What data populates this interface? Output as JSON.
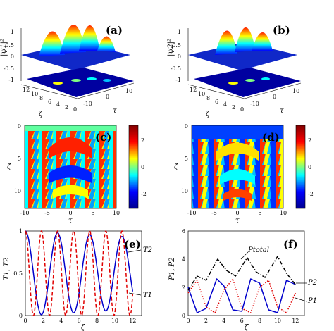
{
  "colors": {
    "jet": [
      "#00008f",
      "#0000ff",
      "#00ffff",
      "#ffff00",
      "#ff0000",
      "#800000"
    ],
    "series_solid": "#0000cc",
    "series_dashed": "#e00000",
    "series_dotted": "#e00000",
    "series_dashdot": "#000000"
  },
  "panels": {
    "a": {
      "label": "(a)",
      "zlabel": "|ψ1|²",
      "zticks": [
        "1",
        "0.5",
        "0",
        "-0.5",
        "-1"
      ],
      "yticks_zeta": [
        "12",
        "10",
        "8",
        "6",
        "4",
        "2",
        "0"
      ],
      "xticks_tau": [
        "-10",
        "0",
        "10"
      ],
      "xlabel": "τ",
      "ylabel": "ζ"
    },
    "b": {
      "label": "(b)",
      "zlabel": "|ψ2|²",
      "zticks": [
        "1",
        "0.5",
        "0",
        "-0.5",
        "-1"
      ],
      "yticks_zeta": [
        "12",
        "10",
        "8",
        "6",
        "4",
        "2",
        "0"
      ],
      "xticks_tau": [
        "-10",
        "0",
        "10"
      ],
      "xlabel": "τ",
      "ylabel": "ζ"
    },
    "c": {
      "label": "(c)",
      "xlabel": "τ",
      "ylabel": "ζ",
      "xticks": [
        "-10",
        "-5",
        "0",
        "5",
        "10"
      ],
      "yticks": [
        "0",
        "5",
        "10"
      ],
      "cbar_ticks": [
        "2",
        "0",
        "-2"
      ]
    },
    "d": {
      "label": "(d)",
      "xlabel": "τ",
      "ylabel": "ζ",
      "xticks": [
        "-10",
        "-5",
        "0",
        "5",
        "10"
      ],
      "yticks": [
        "0",
        "5",
        "10"
      ],
      "cbar_ticks": [
        "2",
        "0",
        "-2"
      ]
    },
    "e": {
      "label": "(e)",
      "xlabel": "ζ",
      "ylabel": "T1, T2",
      "xticks": [
        "0",
        "2",
        "4",
        "6",
        "8",
        "10",
        "12"
      ],
      "yticks": [
        "0",
        "0.5",
        "1"
      ],
      "ann_T2": "T2",
      "ann_T1": "T1"
    },
    "f": {
      "label": "(f)",
      "xlabel": "ζ",
      "ylabel": "P1, P2",
      "xticks": [
        "0",
        "2",
        "4",
        "6",
        "8",
        "10",
        "12"
      ],
      "yticks": [
        "0",
        "2",
        "4",
        "6"
      ],
      "ann_Ptotal": "Ptotal",
      "ann_P2": "P2",
      "ann_P1": "P1"
    }
  },
  "chart_data": [
    {
      "type": "line",
      "panel": "e",
      "xlabel": "ζ",
      "ylabel": "T1, T2",
      "xlim": [
        0,
        13
      ],
      "ylim": [
        0,
        1
      ],
      "series": [
        {
          "name": "T1",
          "style": "solid",
          "color": "#0000cc",
          "period": 3.6,
          "phase": 0,
          "decay": 0.012,
          "x_end": 12
        },
        {
          "name": "T2",
          "style": "dashed",
          "color": "#e00000",
          "period": 1.8,
          "phase": 0,
          "decay": 0.0,
          "x_end": 12
        }
      ]
    },
    {
      "type": "line",
      "panel": "f",
      "xlabel": "ζ",
      "ylabel": "P1, P2",
      "xlim": [
        0,
        13
      ],
      "ylim": [
        0,
        6
      ],
      "series": [
        {
          "name": "P1",
          "style": "solid",
          "color": "#0000cc",
          "x": [
            0,
            1,
            2,
            3.2,
            4,
            5,
            6,
            7,
            8,
            9,
            10,
            11,
            12
          ],
          "y": [
            2,
            0.2,
            0.5,
            2.6,
            2.1,
            0.4,
            0.3,
            2.6,
            2.3,
            0.4,
            0.2,
            2.5,
            2.2
          ]
        },
        {
          "name": "P2",
          "style": "dotted",
          "color": "#e00000",
          "x": [
            0,
            1,
            2,
            3,
            4,
            5,
            6,
            7,
            8,
            9,
            10,
            11,
            12
          ],
          "y": [
            1.6,
            2.5,
            0.6,
            0.2,
            1.8,
            2.6,
            0.5,
            0.2,
            2.0,
            2.5,
            0.6,
            0.2,
            1.6
          ]
        },
        {
          "name": "Ptotal",
          "style": "dashdot",
          "color": "#000000",
          "x": [
            0,
            1,
            2,
            3.3,
            4.3,
            5.3,
            6.6,
            7.6,
            8.6,
            10,
            11,
            12
          ],
          "y": [
            1.8,
            2.8,
            2.5,
            4.0,
            3.2,
            2.8,
            4.1,
            3.1,
            2.7,
            4.2,
            3.0,
            2.2
          ]
        }
      ]
    }
  ]
}
